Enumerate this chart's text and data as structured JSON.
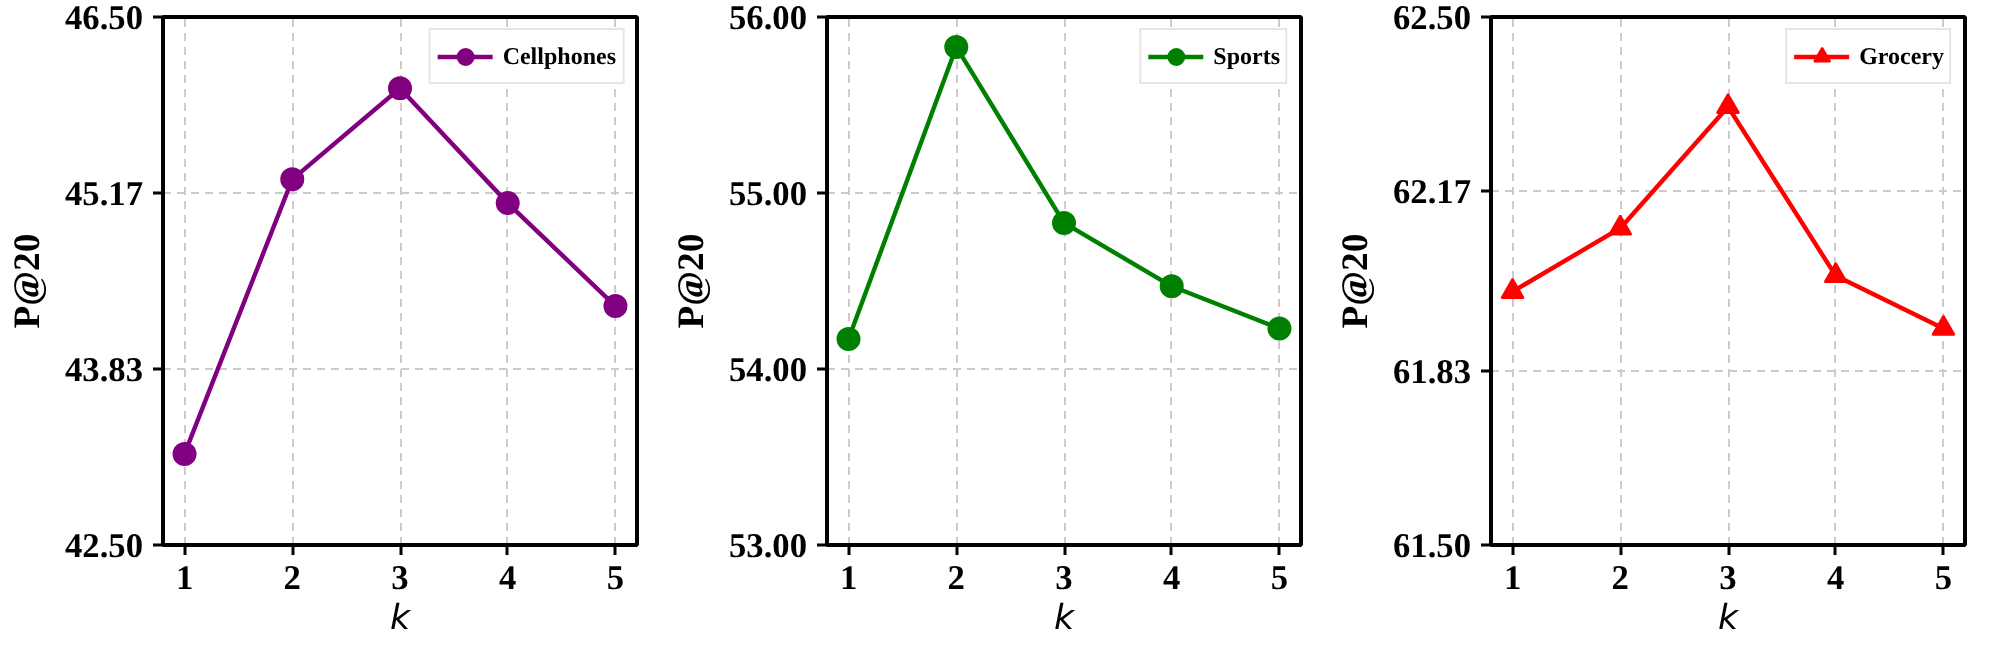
{
  "chart_data": [
    {
      "type": "line",
      "xlabel": "k",
      "ylabel": "P@20",
      "x": [
        1,
        2,
        3,
        4,
        5
      ],
      "xlim": [
        0.8,
        5.2
      ],
      "xticks": [
        1,
        2,
        3,
        4,
        5
      ],
      "ylim": [
        42.5,
        46.5
      ],
      "yticks": [
        {
          "value": 42.5,
          "label": "42.50"
        },
        43.83,
        45.17,
        {
          "value": 46.5,
          "label": "46.50"
        }
      ],
      "grid": true,
      "legend": "top right",
      "marker": "circle",
      "line_style": "solid",
      "series": [
        {
          "name": "Cellphones",
          "color": "#800080",
          "values": [
            43.19,
            45.27,
            45.96,
            45.09,
            44.31
          ]
        }
      ]
    },
    {
      "type": "line",
      "xlabel": "k",
      "ylabel": "P@20",
      "x": [
        1,
        2,
        3,
        4,
        5
      ],
      "xlim": [
        0.8,
        5.2
      ],
      "xticks": [
        1,
        2,
        3,
        4,
        5
      ],
      "ylim": [
        53.0,
        56.0
      ],
      "yticks": [
        {
          "value": 53,
          "label": "53.00"
        },
        {
          "value": 54,
          "label": "54.00"
        },
        {
          "value": 55,
          "label": "55.00"
        },
        {
          "value": 56,
          "label": "56.00"
        }
      ],
      "grid": true,
      "legend": "top right",
      "marker": "circle",
      "line_style": "solid",
      "series": [
        {
          "name": "Sports",
          "color": "#008000",
          "values": [
            54.17,
            55.83,
            54.83,
            54.47,
            54.23
          ]
        }
      ]
    },
    {
      "type": "line",
      "xlabel": "k",
      "ylabel": "P@20",
      "x": [
        1,
        2,
        3,
        4,
        5
      ],
      "xlim": [
        0.8,
        5.2
      ],
      "xticks": [
        1,
        2,
        3,
        4,
        5
      ],
      "ylim": [
        61.5,
        62.5
      ],
      "yticks": [
        {
          "value": 61.5,
          "label": "61.50"
        },
        61.83,
        62.17,
        {
          "value": 62.5,
          "label": "62.50"
        }
      ],
      "grid": true,
      "legend": "top right",
      "marker": "triangle",
      "line_style": "solid",
      "series": [
        {
          "name": "Grocery",
          "color": "#ff0000",
          "values": [
            61.98,
            62.1,
            62.33,
            62.01,
            61.91
          ]
        }
      ]
    }
  ]
}
